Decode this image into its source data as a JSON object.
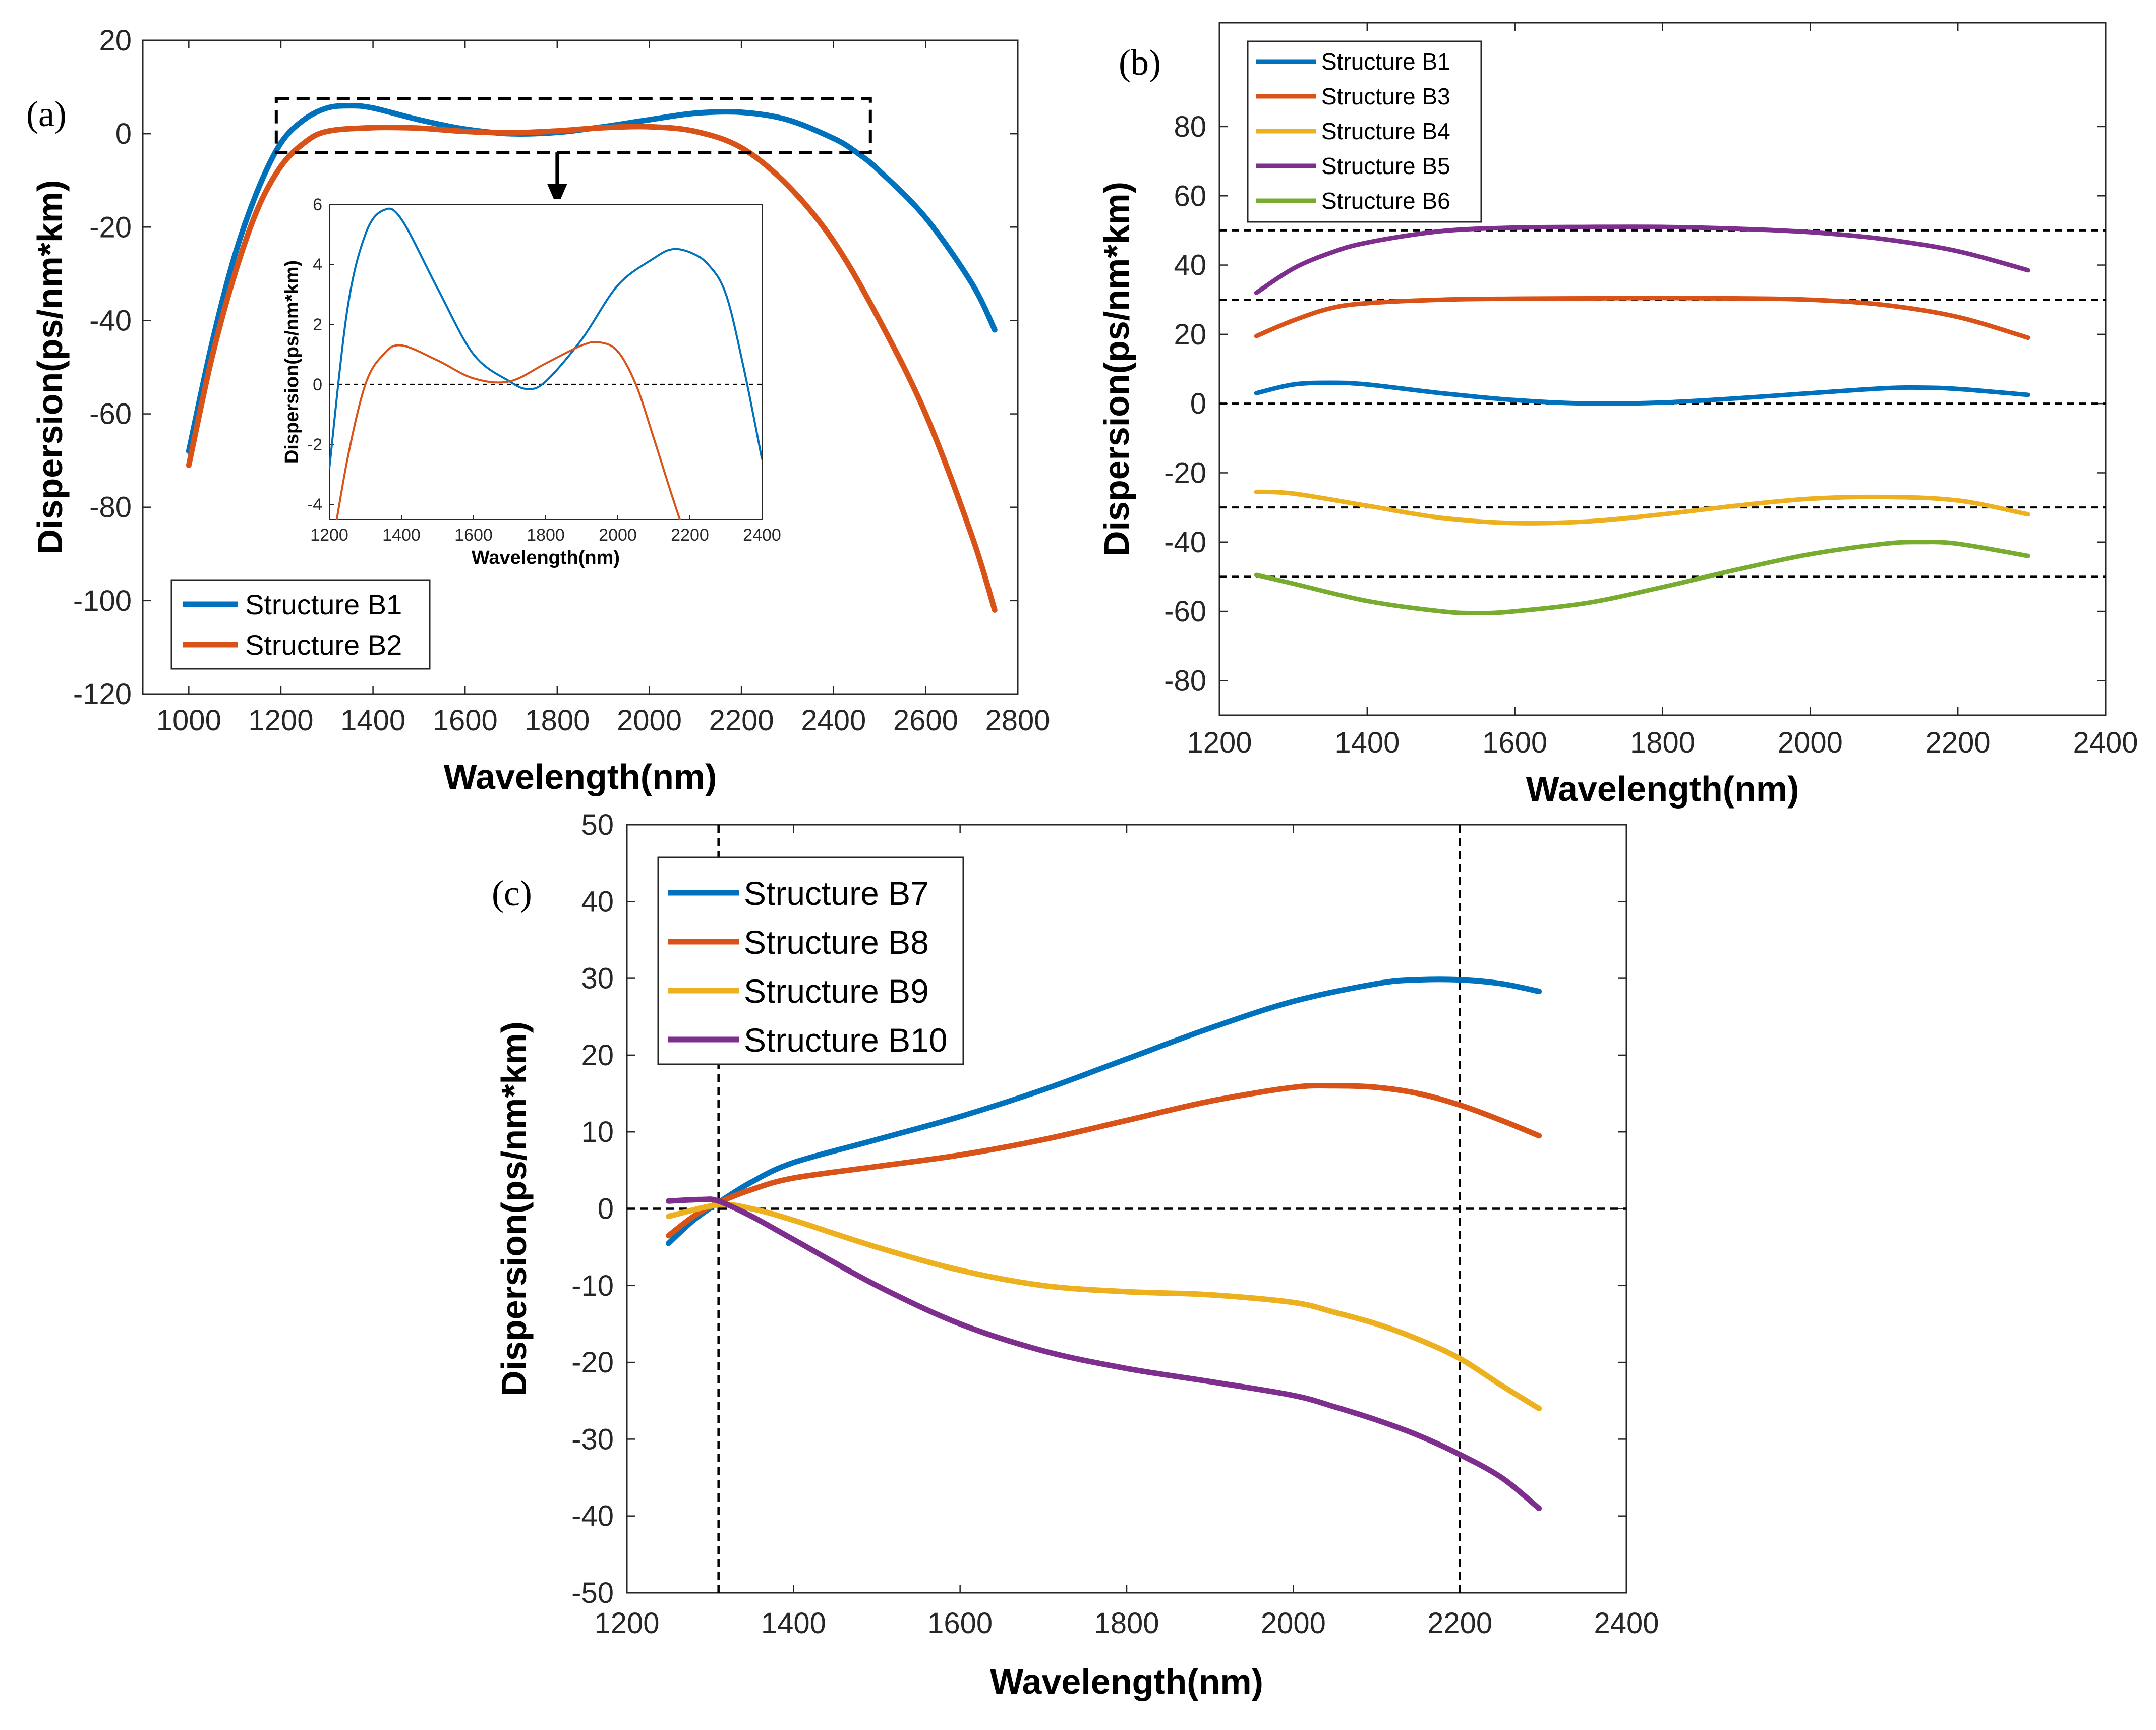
{
  "chart_data": [
    {
      "type": "line",
      "panel_label": "(a)",
      "xlabel": "Wavelength(nm)",
      "ylabel": "Dispersion(ps/nm*km)",
      "xlim": [
        900,
        2800
      ],
      "ylim": [
        -120,
        20
      ],
      "xticks": [
        "1000",
        "1200",
        "1400",
        "1600",
        "1800",
        "2000",
        "2200",
        "2400",
        "2600",
        "2800"
      ],
      "yticks": [
        "20",
        "0",
        "-20",
        "-40",
        "-60",
        "-80",
        "-100",
        "-120"
      ],
      "series": [
        {
          "name": "Structure B1",
          "color": "#0072BD",
          "x": [
            1000,
            1050,
            1100,
            1150,
            1200,
            1250,
            1300,
            1350,
            1400,
            1500,
            1600,
            1700,
            1800,
            1900,
            2000,
            2100,
            2200,
            2300,
            2400,
            2450,
            2500,
            2600,
            2700,
            2750
          ],
          "y": [
            -68,
            -45,
            -26,
            -12,
            -2,
            3,
            5.5,
            6,
            5.5,
            3,
            1,
            0,
            0.3,
            1.5,
            3,
            4.4,
            4.6,
            3,
            -1,
            -4,
            -8,
            -18,
            -32,
            -42
          ]
        },
        {
          "name": "Structure B2",
          "color": "#D95319",
          "x": [
            1000,
            1050,
            1100,
            1150,
            1200,
            1250,
            1300,
            1400,
            1500,
            1600,
            1700,
            1800,
            1900,
            2000,
            2100,
            2200,
            2300,
            2400,
            2500,
            2600,
            2700,
            2750
          ],
          "y": [
            -71,
            -48,
            -30,
            -16,
            -7,
            -2,
            0.5,
            1.3,
            1.2,
            0.5,
            0.2,
            0.6,
            1.3,
            1.5,
            0.5,
            -3,
            -11,
            -23,
            -40,
            -60,
            -86,
            -102
          ]
        }
      ],
      "legend": "bottom-left",
      "annotation_box": {
        "x": [
          1190,
          2480
        ],
        "y": [
          -4,
          7.5
        ]
      },
      "inset": {
        "type": "line",
        "xlabel": "Wavelength(nm)",
        "ylabel": "Dispersion(ps/nm*km)",
        "xlim": [
          1200,
          2400
        ],
        "ylim": [
          -4.5,
          6
        ],
        "xticks": [
          "1200",
          "1400",
          "1600",
          "1800",
          "2000",
          "2200",
          "2400"
        ],
        "yticks": [
          "6",
          "4",
          "2",
          "0",
          "-2",
          "-4"
        ],
        "series": [
          {
            "name": "Structure B1",
            "color": "#0072BD",
            "x": [
              1200,
              1250,
              1300,
              1350,
              1400,
              1500,
              1600,
              1700,
              1750,
              1800,
              1900,
              2000,
              2100,
              2150,
              2200,
              2250,
              2300,
              2350,
              2400
            ],
            "y": [
              -2.8,
              2.5,
              5,
              5.8,
              5.5,
              3.2,
              1,
              0.1,
              -0.15,
              0.1,
              1.5,
              3.3,
              4.2,
              4.5,
              4.4,
              4,
              3,
              0.5,
              -2.5
            ]
          },
          {
            "name": "Structure B2",
            "color": "#D95319",
            "x": [
              1200,
              1250,
              1300,
              1350,
              1400,
              1500,
              1600,
              1700,
              1800,
              1900,
              1950,
              2000,
              2050,
              2100,
              2150,
              2200
            ],
            "y": [
              -6,
              -2.5,
              0,
              1,
              1.3,
              0.8,
              0.2,
              0.1,
              0.7,
              1.3,
              1.4,
              1.1,
              0,
              -1.8,
              -3.7,
              -5.5
            ]
          }
        ]
      }
    },
    {
      "type": "line",
      "panel_label": "(b)",
      "xlabel": "Wavelength(nm)",
      "ylabel": "Dispersion(ps/nm*km)",
      "xlim": [
        1200,
        2400
      ],
      "ylim": [
        -90,
        110
      ],
      "xticks": [
        "1200",
        "1400",
        "1600",
        "1800",
        "2000",
        "2200",
        "2400"
      ],
      "yticks": [
        "80",
        "60",
        "40",
        "20",
        "0",
        "-20",
        "-40",
        "-60",
        "-80"
      ],
      "reference_lines": [
        50,
        30,
        0,
        -30,
        -50
      ],
      "series": [
        {
          "name": "Structure B1",
          "color": "#0072BD",
          "x": [
            1250,
            1300,
            1350,
            1400,
            1500,
            1600,
            1700,
            1800,
            1900,
            2000,
            2100,
            2150,
            2200,
            2295
          ],
          "y": [
            3,
            5.5,
            6,
            5.5,
            3,
            1,
            0,
            0.3,
            1.5,
            3,
            4.4,
            4.6,
            4.2,
            2.5
          ]
        },
        {
          "name": "Structure B3",
          "color": "#D95319",
          "x": [
            1250,
            1300,
            1350,
            1400,
            1500,
            1600,
            1700,
            1800,
            1900,
            2000,
            2100,
            2200,
            2295
          ],
          "y": [
            19.5,
            24,
            27.5,
            29,
            30,
            30.3,
            30.4,
            30.5,
            30.4,
            30,
            28.5,
            25,
            19
          ]
        },
        {
          "name": "Structure B4",
          "color": "#EDB120",
          "x": [
            1250,
            1300,
            1400,
            1500,
            1600,
            1700,
            1800,
            1900,
            2000,
            2100,
            2200,
            2295
          ],
          "y": [
            -25.5,
            -26,
            -29.5,
            -33,
            -34.5,
            -34,
            -32,
            -29.5,
            -27.5,
            -27,
            -28,
            -32
          ]
        },
        {
          "name": "Structure B5",
          "color": "#7E2F8E",
          "x": [
            1250,
            1300,
            1350,
            1400,
            1500,
            1600,
            1700,
            1800,
            1900,
            2000,
            2100,
            2200,
            2295
          ],
          "y": [
            32,
            39,
            43.5,
            46.5,
            49.8,
            50.8,
            51,
            51,
            50.5,
            49.5,
            47.5,
            44,
            38.5
          ]
        },
        {
          "name": "Structure B6",
          "color": "#77AC30",
          "x": [
            1250,
            1300,
            1400,
            1500,
            1550,
            1600,
            1700,
            1800,
            1900,
            2000,
            2100,
            2150,
            2200,
            2295
          ],
          "y": [
            -49.5,
            -52,
            -57,
            -60,
            -60.5,
            -60,
            -57.5,
            -53,
            -48,
            -43.5,
            -40.5,
            -40,
            -40.5,
            -44
          ]
        }
      ],
      "legend": "top-left"
    },
    {
      "type": "line",
      "panel_label": "(c)",
      "xlabel": "Wavelength(nm)",
      "ylabel": "Dispersion(ps/nm*km)",
      "xlim": [
        1200,
        2400
      ],
      "ylim": [
        -50,
        50
      ],
      "xticks": [
        "1200",
        "1400",
        "1600",
        "1800",
        "2000",
        "2200",
        "2400"
      ],
      "yticks": [
        "50",
        "40",
        "30",
        "20",
        "10",
        "0",
        "-10",
        "-20",
        "-30",
        "-40",
        "-50"
      ],
      "reference_lines_x": [
        1310,
        2200
      ],
      "reference_lines_y": [
        0
      ],
      "series": [
        {
          "name": "Structure B7",
          "color": "#0072BD",
          "x": [
            1250,
            1280,
            1310,
            1350,
            1400,
            1500,
            1600,
            1700,
            1800,
            1900,
            2000,
            2100,
            2150,
            2200,
            2250,
            2295
          ],
          "y": [
            -4.5,
            -1.5,
            0.8,
            3.5,
            6,
            9,
            12,
            15.5,
            19.5,
            23.5,
            27,
            29.3,
            29.8,
            29.8,
            29.3,
            28.3
          ]
        },
        {
          "name": "Structure B8",
          "color": "#D95319",
          "x": [
            1250,
            1280,
            1310,
            1350,
            1400,
            1500,
            1600,
            1700,
            1800,
            1900,
            2000,
            2050,
            2100,
            2150,
            2200,
            2250,
            2295
          ],
          "y": [
            -3.5,
            -1,
            0.8,
            2.5,
            4,
            5.5,
            7,
            9,
            11.5,
            14,
            15.8,
            16,
            15.8,
            15,
            13.5,
            11.5,
            9.5
          ]
        },
        {
          "name": "Structure B9",
          "color": "#EDB120",
          "x": [
            1250,
            1310,
            1350,
            1400,
            1500,
            1600,
            1700,
            1800,
            1900,
            2000,
            2050,
            2100,
            2150,
            2200,
            2250,
            2295
          ],
          "y": [
            -1,
            0.5,
            0,
            -1.5,
            -5,
            -8,
            -10,
            -10.8,
            -11.2,
            -12.2,
            -13.5,
            -15,
            -17,
            -19.5,
            -23,
            -26
          ]
        },
        {
          "name": "Structure B10",
          "color": "#7E2F8E",
          "x": [
            1250,
            1290,
            1310,
            1350,
            1400,
            1500,
            1600,
            1700,
            1800,
            1900,
            2000,
            2050,
            2100,
            2150,
            2200,
            2250,
            2295
          ],
          "y": [
            1,
            1.2,
            1,
            -1,
            -4,
            -10,
            -15,
            -18.5,
            -20.8,
            -22.5,
            -24.3,
            -25.8,
            -27.5,
            -29.5,
            -32,
            -35,
            -39
          ]
        }
      ],
      "legend": "top-left"
    }
  ]
}
